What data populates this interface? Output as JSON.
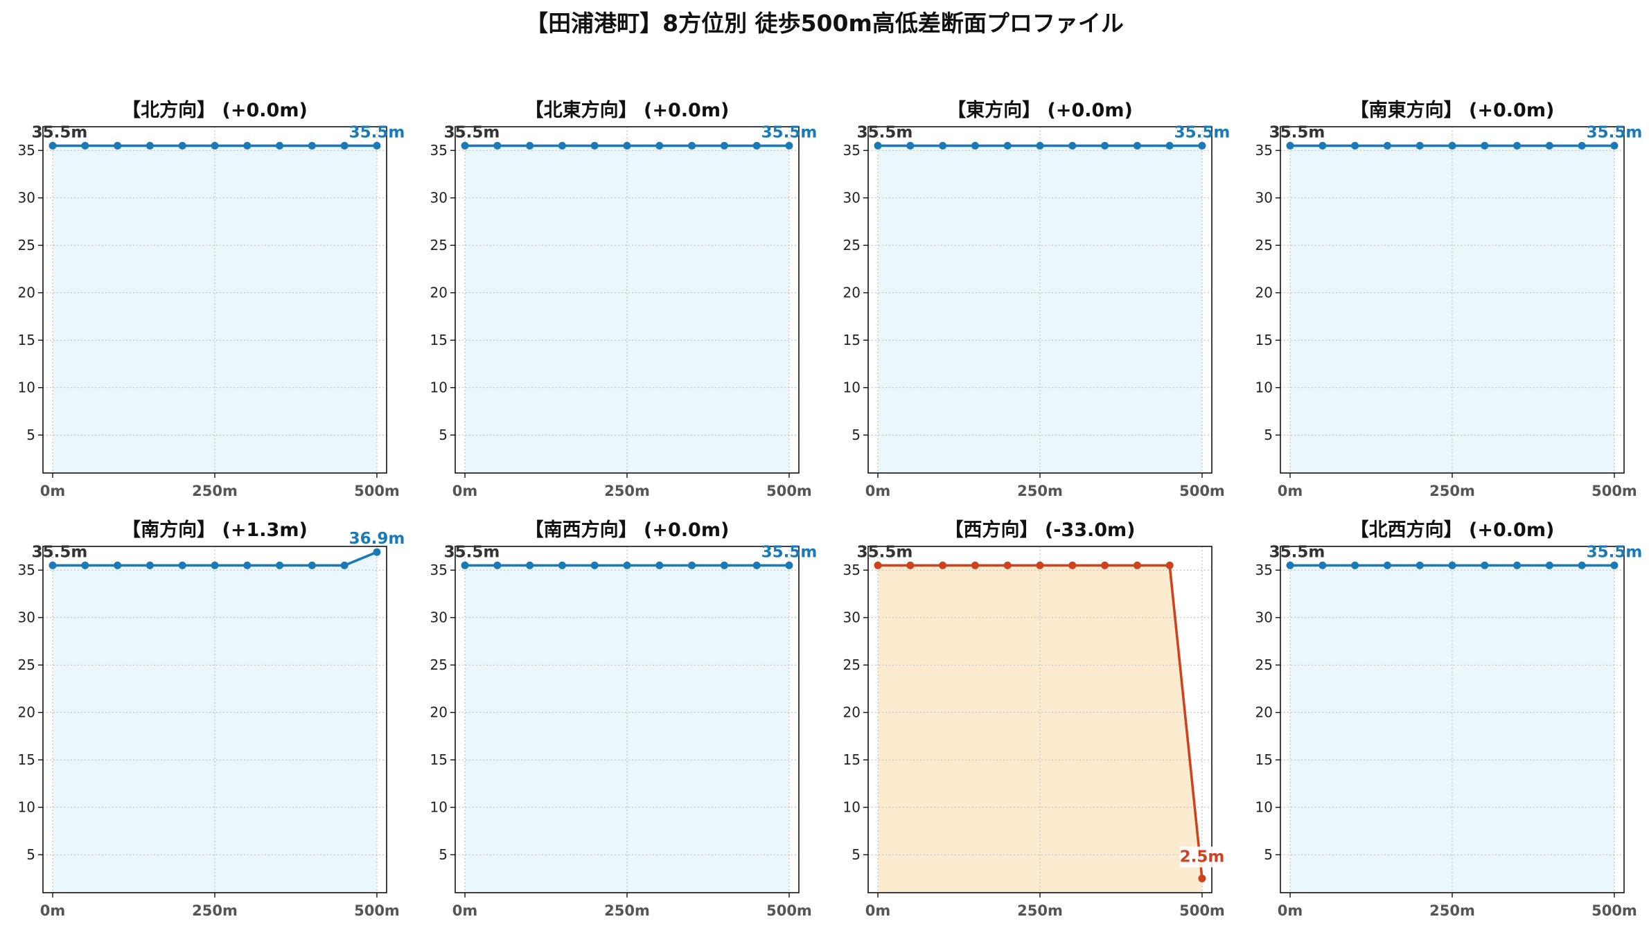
{
  "chart_data": {
    "title": "【田浦港町】8方位別 徒歩500m高低差断面プロファイル",
    "type": "line",
    "ylim": [
      1,
      37.5
    ],
    "yticks": [
      5,
      10,
      15,
      20,
      25,
      30,
      35
    ],
    "xlim": [
      -15,
      515
    ],
    "xticks": [
      0,
      250,
      500
    ],
    "xtick_labels": [
      "0m",
      "250m",
      "500m"
    ],
    "grid": true,
    "colors": {
      "flat_line": "#1a7ab8",
      "flat_fill": "#eaf7fc",
      "down_line": "#cf4220",
      "down_fill": "#fdebd0"
    },
    "panels": [
      {
        "title": "【北方向】 (+0.0m)",
        "trend": "flat",
        "x": [
          0,
          50,
          100,
          150,
          200,
          250,
          300,
          350,
          400,
          450,
          500
        ],
        "y": [
          35.5,
          35.5,
          35.5,
          35.5,
          35.5,
          35.5,
          35.5,
          35.5,
          35.5,
          35.5,
          35.5
        ],
        "start_label": "35.5m",
        "end_label": "35.5m"
      },
      {
        "title": "【北東方向】 (+0.0m)",
        "trend": "flat",
        "x": [
          0,
          50,
          100,
          150,
          200,
          250,
          300,
          350,
          400,
          450,
          500
        ],
        "y": [
          35.5,
          35.5,
          35.5,
          35.5,
          35.5,
          35.5,
          35.5,
          35.5,
          35.5,
          35.5,
          35.5
        ],
        "start_label": "35.5m",
        "end_label": "35.5m"
      },
      {
        "title": "【東方向】 (+0.0m)",
        "trend": "flat",
        "x": [
          0,
          50,
          100,
          150,
          200,
          250,
          300,
          350,
          400,
          450,
          500
        ],
        "y": [
          35.5,
          35.5,
          35.5,
          35.5,
          35.5,
          35.5,
          35.5,
          35.5,
          35.5,
          35.5,
          35.5
        ],
        "start_label": "35.5m",
        "end_label": "35.5m"
      },
      {
        "title": "【南東方向】 (+0.0m)",
        "trend": "flat",
        "x": [
          0,
          50,
          100,
          150,
          200,
          250,
          300,
          350,
          400,
          450,
          500
        ],
        "y": [
          35.5,
          35.5,
          35.5,
          35.5,
          35.5,
          35.5,
          35.5,
          35.5,
          35.5,
          35.5,
          35.5
        ],
        "start_label": "35.5m",
        "end_label": "35.5m"
      },
      {
        "title": "【南方向】 (+1.3m)",
        "trend": "flat",
        "x": [
          0,
          50,
          100,
          150,
          200,
          250,
          300,
          350,
          400,
          450,
          500
        ],
        "y": [
          35.5,
          35.5,
          35.5,
          35.5,
          35.5,
          35.5,
          35.5,
          35.5,
          35.5,
          35.5,
          36.9
        ],
        "start_label": "35.5m",
        "end_label": "36.9m"
      },
      {
        "title": "【南西方向】 (+0.0m)",
        "trend": "flat",
        "x": [
          0,
          50,
          100,
          150,
          200,
          250,
          300,
          350,
          400,
          450,
          500
        ],
        "y": [
          35.5,
          35.5,
          35.5,
          35.5,
          35.5,
          35.5,
          35.5,
          35.5,
          35.5,
          35.5,
          35.5
        ],
        "start_label": "35.5m",
        "end_label": "35.5m"
      },
      {
        "title": "【西方向】 (-33.0m)",
        "trend": "down",
        "x": [
          0,
          50,
          100,
          150,
          200,
          250,
          300,
          350,
          400,
          450,
          500
        ],
        "y": [
          35.5,
          35.5,
          35.5,
          35.5,
          35.5,
          35.5,
          35.5,
          35.5,
          35.5,
          35.5,
          2.5
        ],
        "start_label": "35.5m",
        "end_label": "2.5m"
      },
      {
        "title": "【北西方向】 (+0.0m)",
        "trend": "flat",
        "x": [
          0,
          50,
          100,
          150,
          200,
          250,
          300,
          350,
          400,
          450,
          500
        ],
        "y": [
          35.5,
          35.5,
          35.5,
          35.5,
          35.5,
          35.5,
          35.5,
          35.5,
          35.5,
          35.5,
          35.5
        ],
        "start_label": "35.5m",
        "end_label": "35.5m"
      }
    ]
  }
}
